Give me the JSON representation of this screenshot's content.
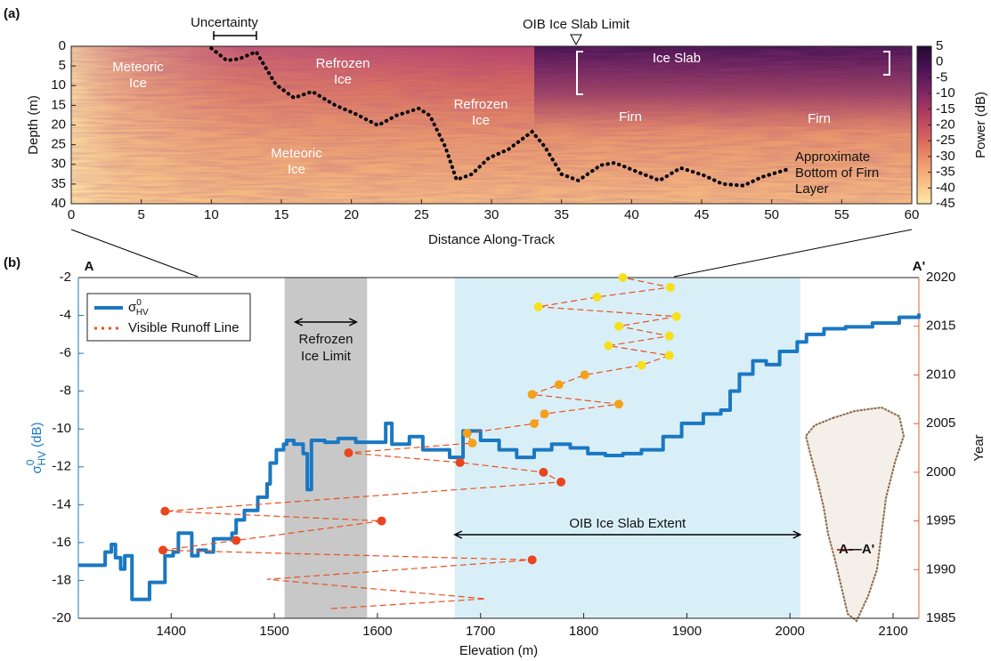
{
  "chart_data": [
    {
      "type": "radargram",
      "panel_label": "(a)",
      "xlabel": "Distance Along-Track",
      "ylabel": "Depth (m)",
      "xlim": [
        0,
        60
      ],
      "xticks": [
        0,
        5,
        10,
        15,
        20,
        25,
        30,
        35,
        40,
        45,
        50,
        55,
        60
      ],
      "ylim": [
        0,
        40
      ],
      "y_reversed": true,
      "yticks": [
        0,
        5,
        10,
        15,
        20,
        25,
        30,
        35,
        40
      ],
      "colorbar": {
        "label": "Power (dB)",
        "lim": [
          -45,
          5
        ],
        "ticks": [
          5,
          0,
          -5,
          -10,
          -15,
          -20,
          -25,
          -30,
          -35,
          -40,
          -45
        ],
        "colors": [
          "#fde9a9",
          "#f7bd80",
          "#ec9168",
          "#d5605d",
          "#b03d60",
          "#7d2565",
          "#4b1257",
          "#24082f"
        ]
      },
      "boundary": {
        "color": "#000000",
        "x": [
          10.0,
          11.1,
          12.0,
          13.2,
          14.6,
          15.9,
          17.2,
          18.8,
          20.3,
          21.9,
          23.2,
          24.8,
          25.6,
          26.7,
          27.5,
          28.6,
          29.8,
          31.2,
          32.9,
          33.8,
          35.0,
          36.2,
          37.8,
          38.8,
          40.7,
          42.0,
          43.5,
          45.1,
          46.5,
          48.0,
          49.3,
          51.2
        ],
        "values": [
          0.5,
          3.6,
          3.2,
          1.4,
          9.7,
          13.1,
          11.5,
          14.9,
          17.2,
          20.1,
          17.6,
          15.8,
          17.6,
          25.5,
          33.9,
          32.5,
          28.4,
          26.2,
          21.7,
          25.5,
          32.5,
          34.1,
          30.2,
          29.6,
          32.3,
          34.1,
          30.9,
          32.7,
          35.0,
          35.4,
          33.2,
          31.2
        ]
      },
      "annotations": {
        "uncertainty": "Uncertainty",
        "oib_limit": "OIB Ice Slab Limit",
        "labels": [
          [
            "Meteoric",
            "Ice"
          ],
          [
            "Refrozen",
            "Ice"
          ],
          [
            "Refrozen",
            "Ice"
          ],
          [
            "Meteoric",
            "Ice"
          ],
          [
            "Ice Slab"
          ],
          [
            "Firn"
          ],
          [
            "Firn"
          ],
          [
            "Approximate",
            "Bottom of Firn",
            "Layer"
          ]
        ]
      }
    },
    {
      "type": "line",
      "panel_label": "(b)",
      "start_label": "A",
      "end_label": "A'",
      "xlabel": "Elevation (m)",
      "ylabel": "σ",
      "ylabel_sup": "0",
      "ylabel_sub": "HV",
      "ylabel_unit": "(dB)",
      "y2label": "Year",
      "xlim": [
        1310,
        2125
      ],
      "xticks": [
        1400,
        1500,
        1600,
        1700,
        1800,
        1900,
        2000,
        2100
      ],
      "ylim": [
        -20,
        -2
      ],
      "yticks": [
        -20,
        -18,
        -16,
        -14,
        -12,
        -10,
        -8,
        -6,
        -4,
        -2
      ],
      "y2lim": [
        1985,
        2020
      ],
      "y2ticks": [
        1985,
        1990,
        1995,
        2000,
        2005,
        2010,
        2015,
        2020
      ],
      "y_color": "#1a78c2",
      "y2_color": "#e0622a",
      "legend": "upper left",
      "regions": [
        {
          "x": [
            1510,
            1590
          ],
          "color": "#c8c8c8",
          "label": [
            "Refrozen",
            "Ice Limit"
          ]
        },
        {
          "x": [
            1675,
            2010
          ],
          "color": "#d9eff8",
          "label": [
            "OIB Ice Slab Extent"
          ]
        }
      ],
      "series": [
        {
          "name": "σ",
          "name_sup": "0",
          "name_sub": "HV",
          "color": "#1a78c2",
          "step": true,
          "x": [
            1310,
            1333,
            1336,
            1342,
            1346,
            1351,
            1355,
            1362,
            1376,
            1379,
            1389,
            1394,
            1402,
            1407,
            1417,
            1420,
            1426,
            1434,
            1441,
            1459,
            1463,
            1471,
            1484,
            1493,
            1496,
            1502,
            1509,
            1512,
            1519,
            1528,
            1532,
            1536,
            1549,
            1562,
            1579,
            1597,
            1608,
            1614,
            1631,
            1644,
            1657,
            1670,
            1683,
            1700,
            1718,
            1735,
            1752,
            1769,
            1787,
            1804,
            1821,
            1838,
            1856,
            1877,
            1895,
            1916,
            1933,
            1942,
            1951,
            1964,
            1977,
            1990,
            2007,
            2016,
            2033,
            2054,
            2080,
            2106,
            2125
          ],
          "values": [
            -17.2,
            -17.2,
            -16.5,
            -16.1,
            -16.8,
            -17.4,
            -16.7,
            -19.0,
            -19.0,
            -18.1,
            -18.1,
            -16.7,
            -16.5,
            -15.5,
            -15.5,
            -16.7,
            -16.4,
            -16.5,
            -15.8,
            -15.5,
            -14.8,
            -14.3,
            -13.6,
            -12.9,
            -11.8,
            -11.1,
            -10.8,
            -10.6,
            -10.8,
            -11.3,
            -13.2,
            -10.6,
            -10.7,
            -10.5,
            -10.7,
            -10.7,
            -9.7,
            -10.8,
            -10.4,
            -11.1,
            -11.1,
            -11.5,
            -10.1,
            -10.6,
            -11.1,
            -11.5,
            -11.1,
            -10.8,
            -11.0,
            -11.3,
            -11.4,
            -11.3,
            -11.1,
            -10.4,
            -9.7,
            -9.2,
            -9.0,
            -8.0,
            -7.1,
            -6.4,
            -6.6,
            -5.9,
            -5.4,
            -5.0,
            -4.7,
            -4.6,
            -4.4,
            -4.1,
            -3.9
          ]
        },
        {
          "name": "Visible Runoff Line",
          "color": "#e8501e",
          "axis": "y2",
          "dashed": true,
          "x": [
            1555,
            1705,
            1493,
            1750,
            1392,
            1463,
            1604,
            1394,
            1778,
            1761,
            1680,
            1572,
            1692,
            1687,
            1752,
            1762,
            1834,
            1750,
            1776,
            1801,
            1856,
            1883,
            1824,
            1883,
            1834,
            1890,
            1756,
            1813,
            1884,
            1838
          ],
          "values": [
            1986,
            1987,
            1989,
            1991,
            1992,
            1993,
            1995,
            1996,
            1999,
            2000,
            2001,
            2002,
            2003,
            2004,
            2005,
            2006,
            2007,
            2008,
            2009,
            2010,
            2011,
            2012,
            2013,
            2014,
            2015,
            2016,
            2017,
            2018,
            2019,
            2020
          ],
          "point_colors": [
            null,
            null,
            null,
            "#e8461e",
            "#e8461e",
            "#e8461e",
            "#e8461e",
            "#e8461e",
            "#e8461e",
            "#e8461e",
            "#e8461e",
            "#e8461e",
            "#f5a01a",
            "#f5a01a",
            "#f5a01a",
            "#f5a01a",
            "#f5a01a",
            "#f5a01a",
            "#f5a01a",
            "#f5a01a",
            "#f6e01c",
            "#f6e01c",
            "#f6e01c",
            "#f6e01c",
            "#f6e01c",
            "#f6e01c",
            "#f6e01c",
            "#f6e01c",
            "#f6e01c",
            "#f6e01c"
          ]
        }
      ],
      "inset_label": "A—A'"
    }
  ]
}
